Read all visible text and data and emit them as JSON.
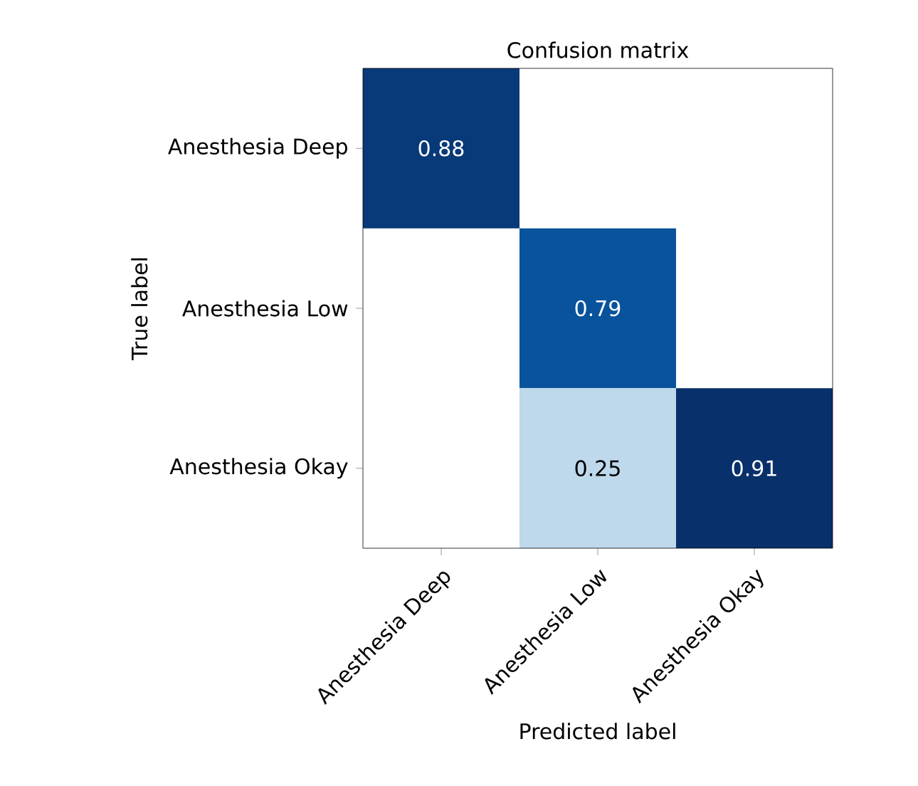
{
  "chart_data": {
    "type": "heatmap",
    "title": "Confusion matrix",
    "xlabel": "Predicted label",
    "ylabel": "True label",
    "categories": [
      "Anesthesia Deep",
      "Anesthesia Low",
      "Anesthesia Okay"
    ],
    "y_categories": [
      "Anesthesia Deep",
      "Anesthesia Low",
      "Anesthesia Okay"
    ],
    "cells": [
      [
        0.88,
        null,
        null
      ],
      [
        null,
        0.79,
        null
      ],
      [
        null,
        0.25,
        0.91
      ]
    ],
    "cell_labels": [
      [
        "0.88",
        null,
        null
      ],
      [
        null,
        "0.79",
        null
      ],
      [
        null,
        "0.25",
        "0.91"
      ]
    ]
  }
}
